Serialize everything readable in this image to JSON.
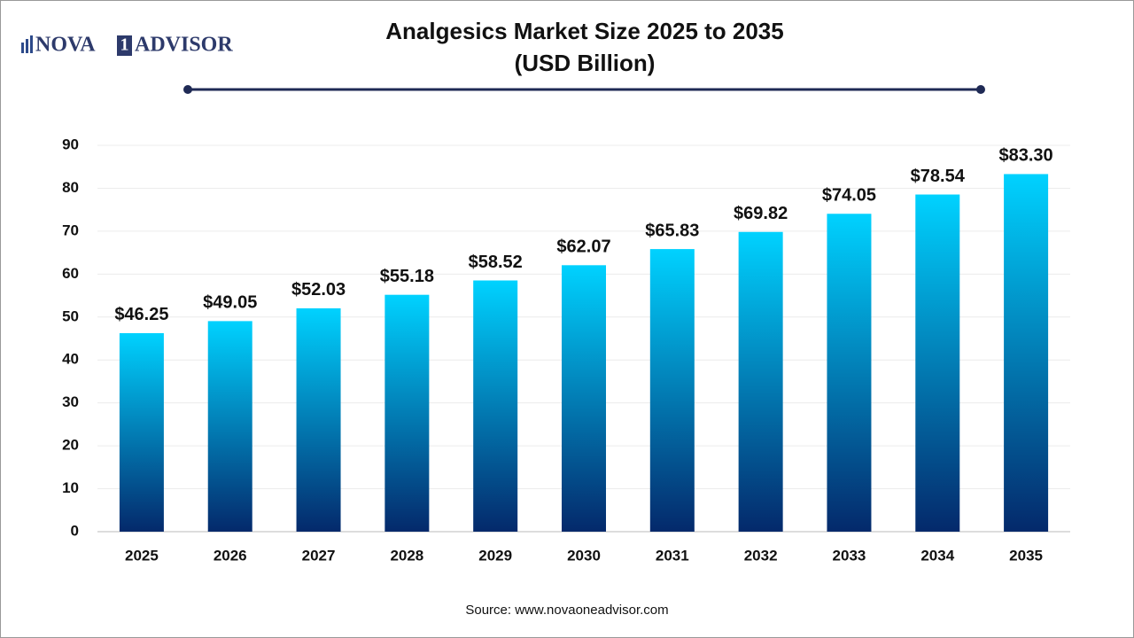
{
  "logo": {
    "left": "NOVA",
    "mark": "1",
    "right": "ADVISOR"
  },
  "source": "Source: www.novaoneadvisor.com",
  "chart_data": {
    "type": "bar",
    "title": "Analgesics Market Size 2025 to 2035",
    "subtitle": "(USD Billion)",
    "categories": [
      "2025",
      "2026",
      "2027",
      "2028",
      "2029",
      "2030",
      "2031",
      "2032",
      "2033",
      "2034",
      "2035"
    ],
    "values": [
      46.25,
      49.05,
      52.03,
      55.18,
      58.52,
      62.07,
      65.83,
      69.82,
      74.05,
      78.54,
      83.3
    ],
    "value_labels": [
      "$46.25",
      "$49.05",
      "$52.03",
      "$55.18",
      "$58.52",
      "$62.07",
      "$65.83",
      "$69.82",
      "$74.05",
      "$78.54",
      "$83.30"
    ],
    "gradient": [
      "#00d2ff",
      "#04296b"
    ],
    "ylim": [
      0,
      90
    ],
    "yticks": [
      0,
      10,
      20,
      30,
      40,
      50,
      60,
      70,
      80,
      90
    ],
    "grid": true
  }
}
